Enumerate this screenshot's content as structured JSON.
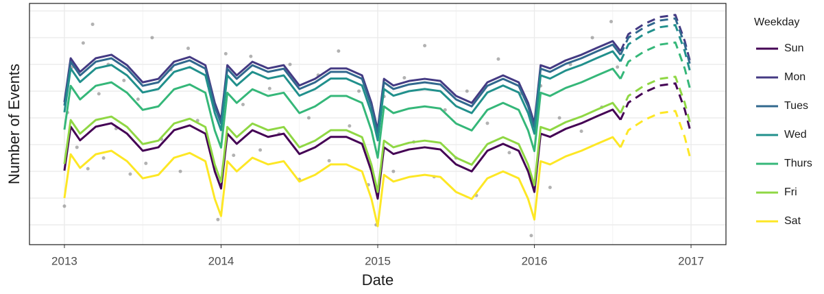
{
  "chart_data": {
    "type": "line",
    "xlabel": "Date",
    "ylabel": "Number of Events",
    "legend_title": "Weekday",
    "legend": "right",
    "grid": true,
    "xlim": [
      2012.777,
      2017.223
    ],
    "xticks": [
      2013,
      2014,
      2015,
      2016,
      2017
    ],
    "xminorticks": [
      2013.5,
      2014.5,
      2015.5,
      2016.5
    ],
    "ylim": [
      0.26,
      9.28
    ],
    "yticks": [
      1,
      2,
      3,
      4,
      5,
      6,
      7,
      8,
      9
    ],
    "x": [
      2013.0,
      2013.04,
      2013.1,
      2013.2,
      2013.3,
      2013.4,
      2013.5,
      2013.6,
      2013.7,
      2013.8,
      2013.9,
      2013.96,
      2014.0,
      2014.04,
      2014.1,
      2014.2,
      2014.3,
      2014.4,
      2014.5,
      2014.6,
      2014.7,
      2014.8,
      2014.9,
      2014.96,
      2015.0,
      2015.04,
      2015.1,
      2015.2,
      2015.3,
      2015.4,
      2015.5,
      2015.6,
      2015.7,
      2015.8,
      2015.9,
      2015.96,
      2016.0,
      2016.04,
      2016.1,
      2016.2,
      2016.3,
      2016.4,
      2016.5,
      2016.55,
      2016.6,
      2016.7,
      2016.8,
      2016.9,
      2016.96,
      2017.0
    ],
    "series": [
      {
        "name": "Sun",
        "color": "#440154",
        "values": [
          3.03,
          4.67,
          4.16,
          4.67,
          4.8,
          4.41,
          3.77,
          3.9,
          4.54,
          4.72,
          4.41,
          3.0,
          2.36,
          4.41,
          4.03,
          4.54,
          4.29,
          4.41,
          3.65,
          3.9,
          4.29,
          4.29,
          4.03,
          3.0,
          1.98,
          3.9,
          3.65,
          3.82,
          3.9,
          3.82,
          3.26,
          3.0,
          3.77,
          4.03,
          3.77,
          3.0,
          2.23,
          4.41,
          4.29,
          4.59,
          4.8,
          5.06,
          5.31,
          4.93,
          null,
          null,
          null,
          null,
          null,
          null
        ],
        "forecast": [
          null,
          null,
          null,
          null,
          null,
          null,
          null,
          null,
          null,
          null,
          null,
          null,
          null,
          null,
          null,
          null,
          null,
          null,
          null,
          null,
          null,
          null,
          null,
          null,
          null,
          null,
          null,
          null,
          null,
          null,
          null,
          null,
          null,
          null,
          null,
          null,
          null,
          null,
          null,
          null,
          null,
          null,
          null,
          4.93,
          5.57,
          5.95,
          6.21,
          6.29,
          5.31,
          4.41
        ]
      },
      {
        "name": "Mon",
        "color": "#443A83",
        "values": [
          5.59,
          7.23,
          6.72,
          7.23,
          7.36,
          6.97,
          6.33,
          6.46,
          7.1,
          7.28,
          6.97,
          5.56,
          4.92,
          6.97,
          6.59,
          7.1,
          6.85,
          6.97,
          6.21,
          6.46,
          6.85,
          6.85,
          6.59,
          5.56,
          4.54,
          6.46,
          6.21,
          6.38,
          6.46,
          6.38,
          5.82,
          5.56,
          6.33,
          6.59,
          6.33,
          5.56,
          4.79,
          6.97,
          6.85,
          7.15,
          7.36,
          7.62,
          7.87,
          7.49,
          null,
          null,
          null,
          null,
          null,
          null
        ],
        "forecast": [
          null,
          null,
          null,
          null,
          null,
          null,
          null,
          null,
          null,
          null,
          null,
          null,
          null,
          null,
          null,
          null,
          null,
          null,
          null,
          null,
          null,
          null,
          null,
          null,
          null,
          null,
          null,
          null,
          null,
          null,
          null,
          null,
          null,
          null,
          null,
          null,
          null,
          null,
          null,
          null,
          null,
          null,
          null,
          7.49,
          8.13,
          8.51,
          8.77,
          8.85,
          7.87,
          6.97
        ]
      },
      {
        "name": "Tues",
        "color": "#31688E",
        "values": [
          5.46,
          7.1,
          6.59,
          7.1,
          7.23,
          6.84,
          6.2,
          6.33,
          6.97,
          7.15,
          6.84,
          5.43,
          4.79,
          6.84,
          6.46,
          6.97,
          6.72,
          6.84,
          6.08,
          6.33,
          6.72,
          6.72,
          6.46,
          5.43,
          4.41,
          6.33,
          6.08,
          6.25,
          6.33,
          6.25,
          5.69,
          5.43,
          6.2,
          6.46,
          6.2,
          5.43,
          4.66,
          6.84,
          6.72,
          7.02,
          7.23,
          7.49,
          7.74,
          7.36,
          null,
          null,
          null,
          null,
          null,
          null
        ],
        "forecast": [
          null,
          null,
          null,
          null,
          null,
          null,
          null,
          null,
          null,
          null,
          null,
          null,
          null,
          null,
          null,
          null,
          null,
          null,
          null,
          null,
          null,
          null,
          null,
          null,
          null,
          null,
          null,
          null,
          null,
          null,
          null,
          null,
          null,
          null,
          null,
          null,
          null,
          null,
          null,
          null,
          null,
          null,
          null,
          7.36,
          8.0,
          8.38,
          8.64,
          8.72,
          7.74,
          6.84
        ]
      },
      {
        "name": "Wed",
        "color": "#21908C",
        "values": [
          5.21,
          6.85,
          6.34,
          6.85,
          6.98,
          6.59,
          5.95,
          6.08,
          6.72,
          6.9,
          6.59,
          5.18,
          4.54,
          6.59,
          6.21,
          6.72,
          6.47,
          6.59,
          5.83,
          6.08,
          6.47,
          6.47,
          6.21,
          5.18,
          4.16,
          6.08,
          5.83,
          6.0,
          6.08,
          6.0,
          5.44,
          5.18,
          5.95,
          6.21,
          5.95,
          5.18,
          4.41,
          6.59,
          6.47,
          6.77,
          6.98,
          7.24,
          7.49,
          7.11,
          null,
          null,
          null,
          null,
          null,
          null
        ],
        "forecast": [
          null,
          null,
          null,
          null,
          null,
          null,
          null,
          null,
          null,
          null,
          null,
          null,
          null,
          null,
          null,
          null,
          null,
          null,
          null,
          null,
          null,
          null,
          null,
          null,
          null,
          null,
          null,
          null,
          null,
          null,
          null,
          null,
          null,
          null,
          null,
          null,
          null,
          null,
          null,
          null,
          null,
          null,
          null,
          7.11,
          7.75,
          8.13,
          8.39,
          8.47,
          7.49,
          6.59
        ]
      },
      {
        "name": "Thurs",
        "color": "#35B779",
        "values": [
          4.56,
          6.2,
          5.69,
          6.2,
          6.33,
          5.94,
          5.3,
          5.43,
          6.07,
          6.25,
          5.94,
          4.53,
          3.89,
          5.94,
          5.56,
          6.07,
          5.82,
          5.94,
          5.18,
          5.43,
          5.82,
          5.82,
          5.56,
          4.53,
          3.51,
          5.43,
          5.18,
          5.35,
          5.43,
          5.35,
          4.79,
          4.53,
          5.3,
          5.56,
          5.3,
          4.53,
          3.76,
          5.94,
          5.82,
          6.12,
          6.33,
          6.59,
          6.84,
          6.46,
          null,
          null,
          null,
          null,
          null,
          null
        ],
        "forecast": [
          null,
          null,
          null,
          null,
          null,
          null,
          null,
          null,
          null,
          null,
          null,
          null,
          null,
          null,
          null,
          null,
          null,
          null,
          null,
          null,
          null,
          null,
          null,
          null,
          null,
          null,
          null,
          null,
          null,
          null,
          null,
          null,
          null,
          null,
          null,
          null,
          null,
          null,
          null,
          null,
          null,
          null,
          null,
          6.46,
          7.1,
          7.48,
          7.74,
          7.82,
          6.84,
          5.94
        ]
      },
      {
        "name": "Fri",
        "color": "#8FD744",
        "values": [
          3.28,
          4.92,
          4.41,
          4.92,
          5.05,
          4.66,
          4.02,
          4.15,
          4.79,
          4.97,
          4.66,
          3.25,
          2.61,
          4.66,
          4.28,
          4.79,
          4.54,
          4.66,
          3.9,
          4.15,
          4.54,
          4.54,
          4.28,
          3.25,
          2.23,
          4.15,
          3.9,
          4.07,
          4.15,
          4.07,
          3.51,
          3.25,
          4.02,
          4.28,
          4.02,
          3.25,
          2.48,
          4.66,
          4.54,
          4.84,
          5.05,
          5.31,
          5.56,
          5.18,
          null,
          null,
          null,
          null,
          null,
          null
        ],
        "forecast": [
          null,
          null,
          null,
          null,
          null,
          null,
          null,
          null,
          null,
          null,
          null,
          null,
          null,
          null,
          null,
          null,
          null,
          null,
          null,
          null,
          null,
          null,
          null,
          null,
          null,
          null,
          null,
          null,
          null,
          null,
          null,
          null,
          null,
          null,
          null,
          null,
          null,
          null,
          null,
          null,
          null,
          null,
          null,
          5.18,
          5.82,
          6.2,
          6.46,
          6.54,
          5.56,
          4.66
        ]
      },
      {
        "name": "Sat",
        "color": "#FDE725",
        "values": [
          2.0,
          3.64,
          3.13,
          3.64,
          3.77,
          3.38,
          2.74,
          2.87,
          3.51,
          3.69,
          3.38,
          1.97,
          1.33,
          3.38,
          3.0,
          3.51,
          3.26,
          3.38,
          2.62,
          2.87,
          3.26,
          3.26,
          3.0,
          1.97,
          0.95,
          2.87,
          2.62,
          2.79,
          2.87,
          2.79,
          2.23,
          1.97,
          2.74,
          3.0,
          2.74,
          1.97,
          1.2,
          3.38,
          3.26,
          3.56,
          3.77,
          4.03,
          4.28,
          3.9,
          null,
          null,
          null,
          null,
          null,
          null
        ],
        "forecast": [
          null,
          null,
          null,
          null,
          null,
          null,
          null,
          null,
          null,
          null,
          null,
          null,
          null,
          null,
          null,
          null,
          null,
          null,
          null,
          null,
          null,
          null,
          null,
          null,
          null,
          null,
          null,
          null,
          null,
          null,
          null,
          null,
          null,
          null,
          null,
          null,
          null,
          null,
          null,
          null,
          null,
          null,
          null,
          3.9,
          4.54,
          4.92,
          5.18,
          5.26,
          4.28,
          3.38
        ]
      }
    ],
    "points": {
      "color": "#7f7f7f",
      "x": [
        2013.0,
        2013.02,
        2013.05,
        2013.08,
        2013.12,
        2013.15,
        2013.18,
        2013.22,
        2013.25,
        2013.28,
        2013.33,
        2013.38,
        2013.42,
        2013.47,
        2013.52,
        2013.56,
        2013.62,
        2013.68,
        2013.74,
        2013.79,
        2013.85,
        2013.92,
        2013.98,
        2014.03,
        2014.08,
        2014.14,
        2014.19,
        2014.25,
        2014.31,
        2014.37,
        2014.44,
        2014.5,
        2014.56,
        2014.62,
        2014.69,
        2014.75,
        2014.82,
        2014.88,
        2014.94,
        2014.99,
        2015.04,
        2015.1,
        2015.17,
        2015.23,
        2015.3,
        2015.36,
        2015.43,
        2015.5,
        2015.57,
        2015.63,
        2015.7,
        2015.77,
        2015.84,
        2015.91,
        2015.98,
        2016.04,
        2016.1,
        2016.16,
        2016.23,
        2016.3,
        2016.37,
        2016.43,
        2016.49,
        2016.53
      ],
      "y": [
        1.7,
        5.2,
        6.9,
        3.9,
        7.8,
        3.1,
        8.5,
        5.9,
        3.5,
        7.0,
        4.6,
        6.4,
        2.9,
        5.7,
        3.3,
        8.0,
        4.2,
        6.8,
        3.0,
        7.6,
        4.9,
        6.2,
        1.2,
        7.4,
        3.6,
        5.5,
        7.3,
        3.8,
        6.1,
        4.4,
        7.0,
        2.7,
        5.0,
        6.6,
        3.4,
        7.5,
        4.7,
        6.0,
        2.5,
        1.0,
        5.8,
        3.0,
        6.5,
        4.1,
        7.7,
        2.8,
        5.3,
        3.5,
        6.0,
        2.1,
        4.8,
        7.2,
        3.7,
        5.9,
        0.6,
        6.2,
        2.4,
        5.0,
        7.0,
        4.5,
        8.0,
        5.4,
        8.6,
        6.9
      ]
    }
  }
}
